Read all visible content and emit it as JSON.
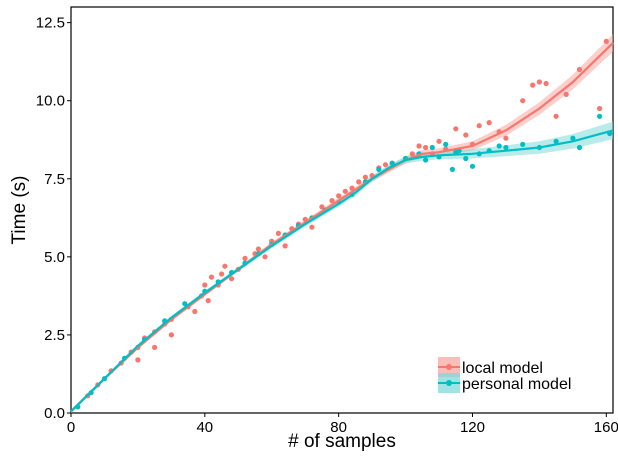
{
  "chart_data": {
    "type": "scatter",
    "title": "",
    "xlabel": "# of samples",
    "ylabel": "Time (s)",
    "xlim": [
      0,
      162
    ],
    "ylim": [
      0,
      13
    ],
    "x_ticks": [
      0,
      40,
      80,
      120,
      160
    ],
    "x_tick_labels": [
      "0",
      "40",
      "80",
      "120",
      "160"
    ],
    "y_ticks": [
      0,
      2.5,
      5,
      7.5,
      10,
      12.5
    ],
    "y_tick_labels": [
      "0.0",
      "2.5",
      "5.0",
      "7.5",
      "10.0",
      "12.5"
    ],
    "grid": false,
    "legend_position": "bottom-right",
    "series": [
      {
        "name": "local model",
        "color": "#F8766D",
        "band_color": "#F8A8A3",
        "trend": [
          [
            0,
            0.05
          ],
          [
            10,
            1.1
          ],
          [
            20,
            2.1
          ],
          [
            30,
            3.0
          ],
          [
            40,
            3.8
          ],
          [
            50,
            4.6
          ],
          [
            60,
            5.4
          ],
          [
            70,
            6.1
          ],
          [
            80,
            6.8
          ],
          [
            90,
            7.5
          ],
          [
            100,
            8.1
          ],
          [
            105,
            8.3
          ],
          [
            110,
            8.35
          ],
          [
            120,
            8.55
          ],
          [
            130,
            9.05
          ],
          [
            140,
            9.75
          ],
          [
            150,
            10.6
          ],
          [
            162,
            11.85
          ]
        ],
        "points": [
          [
            2,
            0.2
          ],
          [
            5,
            0.55
          ],
          [
            8,
            0.9
          ],
          [
            12,
            1.35
          ],
          [
            15,
            1.6
          ],
          [
            18,
            1.95
          ],
          [
            20,
            2.1
          ],
          [
            22,
            2.4
          ],
          [
            25,
            2.6
          ],
          [
            28,
            2.85
          ],
          [
            30,
            3.0
          ],
          [
            20,
            1.7
          ],
          [
            25,
            2.1
          ],
          [
            30,
            2.5
          ],
          [
            35,
            3.4
          ],
          [
            37,
            3.25
          ],
          [
            39,
            3.75
          ],
          [
            40,
            4.1
          ],
          [
            41,
            3.6
          ],
          [
            42,
            4.35
          ],
          [
            44,
            4.1
          ],
          [
            45,
            4.45
          ],
          [
            46,
            4.7
          ],
          [
            48,
            4.3
          ],
          [
            50,
            4.6
          ],
          [
            52,
            4.95
          ],
          [
            55,
            5.1
          ],
          [
            56,
            5.25
          ],
          [
            58,
            5.0
          ],
          [
            60,
            5.5
          ],
          [
            62,
            5.75
          ],
          [
            64,
            5.35
          ],
          [
            66,
            5.9
          ],
          [
            68,
            6.05
          ],
          [
            70,
            6.2
          ],
          [
            72,
            5.95
          ],
          [
            75,
            6.6
          ],
          [
            78,
            6.8
          ],
          [
            80,
            6.95
          ],
          [
            82,
            7.1
          ],
          [
            84,
            7.2
          ],
          [
            86,
            7.4
          ],
          [
            88,
            7.55
          ],
          [
            90,
            7.6
          ],
          [
            92,
            7.85
          ],
          [
            94,
            7.95
          ],
          [
            96,
            8.0
          ],
          [
            100,
            8.15
          ],
          [
            102,
            8.3
          ],
          [
            104,
            8.55
          ],
          [
            106,
            8.5
          ],
          [
            108,
            8.3
          ],
          [
            110,
            8.7
          ],
          [
            112,
            8.45
          ],
          [
            115,
            9.1
          ],
          [
            118,
            8.9
          ],
          [
            120,
            8.6
          ],
          [
            122,
            9.2
          ],
          [
            125,
            9.3
          ],
          [
            128,
            9.0
          ],
          [
            130,
            8.8
          ],
          [
            135,
            10.0
          ],
          [
            138,
            10.5
          ],
          [
            140,
            10.6
          ],
          [
            142,
            10.55
          ],
          [
            158,
            9.75
          ],
          [
            160,
            11.9
          ],
          [
            152,
            11.0
          ],
          [
            145,
            9.5
          ],
          [
            148,
            10.2
          ]
        ]
      },
      {
        "name": "personal model",
        "color": "#00BFC4",
        "band_color": "#7FDADB",
        "trend": [
          [
            0,
            0.05
          ],
          [
            10,
            1.1
          ],
          [
            20,
            2.15
          ],
          [
            30,
            3.05
          ],
          [
            40,
            3.85
          ],
          [
            50,
            4.6
          ],
          [
            60,
            5.35
          ],
          [
            70,
            6.05
          ],
          [
            80,
            6.7
          ],
          [
            85,
            7.05
          ],
          [
            90,
            7.5
          ],
          [
            95,
            7.85
          ],
          [
            100,
            8.1
          ],
          [
            105,
            8.2
          ],
          [
            110,
            8.25
          ],
          [
            120,
            8.3
          ],
          [
            130,
            8.4
          ],
          [
            140,
            8.5
          ],
          [
            150,
            8.7
          ],
          [
            162,
            9.05
          ]
        ],
        "points": [
          [
            2,
            0.2
          ],
          [
            6,
            0.65
          ],
          [
            10,
            1.1
          ],
          [
            16,
            1.75
          ],
          [
            22,
            2.35
          ],
          [
            28,
            2.95
          ],
          [
            34,
            3.5
          ],
          [
            40,
            3.9
          ],
          [
            44,
            4.2
          ],
          [
            48,
            4.5
          ],
          [
            52,
            4.8
          ],
          [
            56,
            5.1
          ],
          [
            60,
            5.4
          ],
          [
            64,
            5.7
          ],
          [
            68,
            6.0
          ],
          [
            72,
            6.25
          ],
          [
            76,
            6.5
          ],
          [
            80,
            6.75
          ],
          [
            84,
            7.0
          ],
          [
            88,
            7.4
          ],
          [
            92,
            7.8
          ],
          [
            96,
            8.0
          ],
          [
            100,
            8.15
          ],
          [
            104,
            8.3
          ],
          [
            106,
            8.1
          ],
          [
            108,
            8.5
          ],
          [
            110,
            8.2
          ],
          [
            112,
            8.6
          ],
          [
            115,
            8.35
          ],
          [
            118,
            8.15
          ],
          [
            120,
            7.9
          ],
          [
            122,
            8.3
          ],
          [
            125,
            8.4
          ],
          [
            128,
            8.55
          ],
          [
            130,
            8.5
          ],
          [
            135,
            8.6
          ],
          [
            140,
            8.5
          ],
          [
            145,
            8.7
          ],
          [
            150,
            8.8
          ],
          [
            152,
            8.5
          ],
          [
            158,
            9.5
          ],
          [
            161,
            8.95
          ],
          [
            114,
            7.8
          ],
          [
            116,
            8.4
          ]
        ]
      }
    ]
  }
}
